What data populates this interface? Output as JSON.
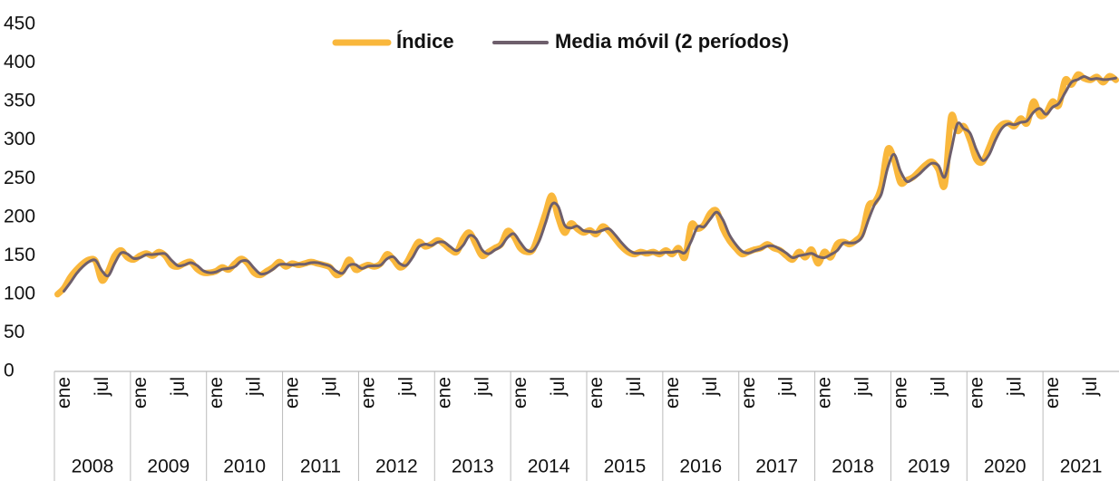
{
  "chart_data": {
    "type": "line",
    "categories": [
      "ene",
      null,
      null,
      null,
      null,
      null,
      "jul",
      null,
      null,
      null,
      null,
      null,
      "ene",
      null,
      null,
      null,
      null,
      null,
      "jul",
      null,
      null,
      null,
      null,
      null,
      "ene",
      null,
      null,
      null,
      null,
      null,
      "jul",
      null,
      null,
      null,
      null,
      null,
      "ene",
      null,
      null,
      null,
      null,
      null,
      "jul",
      null,
      null,
      null,
      null,
      null,
      "ene",
      null,
      null,
      null,
      null,
      null,
      "jul",
      null,
      null,
      null,
      null,
      null,
      "ene",
      null,
      null,
      null,
      null,
      null,
      "jul",
      null,
      null,
      null,
      null,
      null,
      "ene",
      null,
      null,
      null,
      null,
      null,
      "jul",
      null,
      null,
      null,
      null,
      null,
      "ene",
      null,
      null,
      null,
      null,
      null,
      "jul",
      null,
      null,
      null,
      null,
      null,
      "ene",
      null,
      null,
      null,
      null,
      null,
      "jul",
      null,
      null,
      null,
      null,
      null,
      "ene",
      null,
      null,
      null,
      null,
      null,
      "jul",
      null,
      null,
      null,
      null,
      null,
      "ene",
      null,
      null,
      null,
      null,
      null,
      "jul",
      null,
      null,
      null,
      null,
      null,
      "ene",
      null,
      null,
      null,
      null,
      null,
      "jul",
      null,
      null,
      null,
      null,
      null,
      "ene",
      null,
      null,
      null,
      null,
      null,
      "jul",
      null,
      null,
      null,
      null,
      null,
      "ene",
      null,
      null,
      null,
      null,
      null,
      "jul",
      null,
      null,
      null,
      null,
      null
    ],
    "year_groups": [
      "2008",
      "2009",
      "2010",
      "2011",
      "2012",
      "2013",
      "2014",
      "2015",
      "2016",
      "2017",
      "2018",
      "2019",
      "2020",
      "2021"
    ],
    "series": [
      {
        "name": "Índice",
        "color": "#f9b73c",
        "values": [
          100,
          108,
          122,
          132,
          140,
          145,
          143,
          118,
          130,
          150,
          157,
          148,
          145,
          150,
          153,
          150,
          155,
          150,
          138,
          136,
          140,
          142,
          133,
          128,
          128,
          130,
          135,
          132,
          140,
          146,
          140,
          128,
          125,
          130,
          135,
          142,
          136,
          140,
          138,
          140,
          142,
          140,
          138,
          135,
          125,
          130,
          145,
          132,
          135,
          138,
          136,
          140,
          152,
          145,
          135,
          140,
          155,
          168,
          162,
          165,
          170,
          165,
          158,
          155,
          172,
          180,
          165,
          150,
          155,
          160,
          165,
          182,
          175,
          160,
          155,
          158,
          180,
          205,
          228,
          200,
          180,
          192,
          185,
          180,
          183,
          178,
          188,
          182,
          172,
          162,
          155,
          152,
          155,
          153,
          155,
          152,
          157,
          152,
          160,
          148,
          190,
          185,
          190,
          205,
          208,
          185,
          170,
          160,
          152,
          155,
          158,
          160,
          165,
          160,
          157,
          150,
          145,
          155,
          148,
          158,
          140,
          155,
          148,
          165,
          168,
          165,
          170,
          180,
          215,
          220,
          240,
          288,
          275,
          245,
          248,
          252,
          260,
          268,
          272,
          262,
          242,
          330,
          312,
          318,
          300,
          275,
          272,
          290,
          310,
          320,
          322,
          318,
          328,
          322,
          350,
          332,
          335,
          350,
          345,
          378,
          372,
          385,
          380,
          378,
          382,
          375,
          383,
          378
        ]
      },
      {
        "name": "Media móvil (2 períodos)",
        "color": "#6e5f6c",
        "values": [
          null,
          104,
          115,
          127,
          136,
          142.5,
          144,
          130.5,
          124,
          140,
          153.5,
          152.5,
          146.5,
          147.5,
          151.5,
          151.5,
          152.5,
          152.5,
          144,
          137,
          138,
          141,
          137.5,
          130.5,
          128,
          129,
          132.5,
          133.5,
          136,
          143,
          143,
          134,
          126.5,
          127.5,
          132.5,
          138.5,
          139,
          138,
          139,
          139,
          141,
          141,
          139,
          136.5,
          130,
          127.5,
          137.5,
          138.5,
          133.5,
          136.5,
          137,
          138,
          146,
          148.5,
          140,
          137.5,
          147.5,
          161.5,
          165,
          163.5,
          167.5,
          167.5,
          161.5,
          156.5,
          163.5,
          176,
          172.5,
          157.5,
          152.5,
          157.5,
          162.5,
          173.5,
          178.5,
          167.5,
          157.5,
          156.5,
          169,
          192.5,
          216.5,
          214,
          190,
          186,
          188.5,
          182.5,
          181.5,
          180.5,
          183,
          185,
          177,
          167,
          158.5,
          153.5,
          153.5,
          154,
          154,
          153.5,
          154.5,
          154.5,
          156,
          154,
          169,
          187.5,
          187.5,
          197.5,
          206.5,
          196.5,
          177.5,
          165,
          156,
          153.5,
          156.5,
          159,
          162.5,
          162.5,
          158.5,
          153.5,
          147.5,
          150,
          151.5,
          153,
          149,
          147.5,
          151.5,
          156.5,
          166.5,
          166.5,
          167.5,
          175,
          197.5,
          217.5,
          230,
          264,
          281.5,
          260,
          246.5,
          250,
          256,
          264,
          270,
          267,
          252,
          286,
          321,
          315,
          309,
          287.5,
          273.5,
          281,
          300,
          315,
          321,
          320,
          323,
          325,
          336,
          341,
          333.5,
          342.5,
          347.5,
          361.5,
          375,
          378.5,
          382.5,
          379,
          380,
          378.5,
          379,
          380.5
        ]
      }
    ],
    "ylim": [
      0,
      450
    ],
    "yticks": [
      0,
      50,
      100,
      150,
      200,
      250,
      300,
      350,
      400,
      450
    ],
    "grid": false,
    "legend": "top"
  }
}
